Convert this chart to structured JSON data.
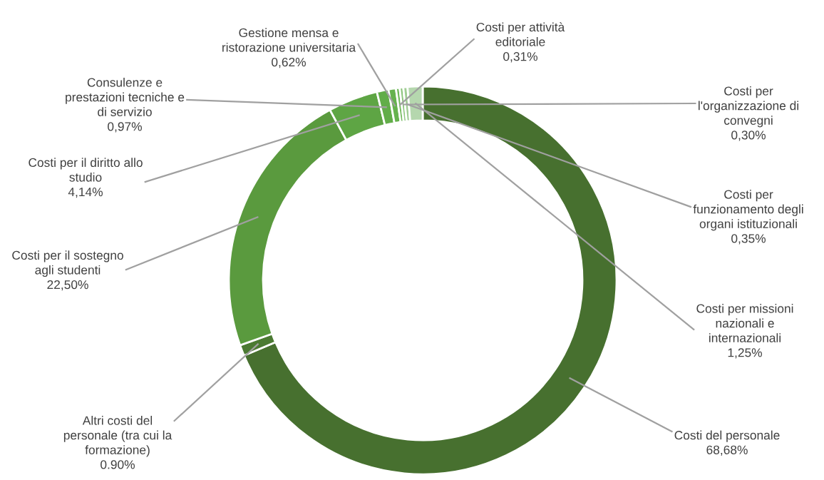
{
  "chart_data": {
    "type": "donut",
    "categories": [
      "Costi del personale",
      "Altri costi del\npersonale (tra cui la\nformazione)",
      "Costi per il sostegno\nagli studenti",
      "Costi per il diritto allo\nstudio",
      "Consulenze e\nprestazioni tecniche e\ndi servizio",
      "Gestione mensa e\nristorazione universitaria",
      "Costi per attività\neditoriale",
      "Costi per\nl'organizzazione di\nconvegni",
      "Costi per\nfunzionamento degli\norgani istituzionali",
      "Costi per missioni\nnazionali e\ninternazionali"
    ],
    "values": [
      68.68,
      0.9,
      22.5,
      4.14,
      0.97,
      0.62,
      0.31,
      0.3,
      0.35,
      1.25
    ],
    "value_labels": [
      "68,68%",
      "0.90%",
      "22,50%",
      "4,14%",
      "0,97%",
      "0,62%",
      "0,31%",
      "0,30%",
      "0,35%",
      "1,25%"
    ],
    "colors": [
      "#47702f",
      "#4b7a32",
      "#5a9a3e",
      "#5ea544",
      "#62ad49",
      "#66b24e",
      "#70b85a",
      "#8cc47c",
      "#a0cd94",
      "#b5d7ae"
    ],
    "legend": false
  }
}
